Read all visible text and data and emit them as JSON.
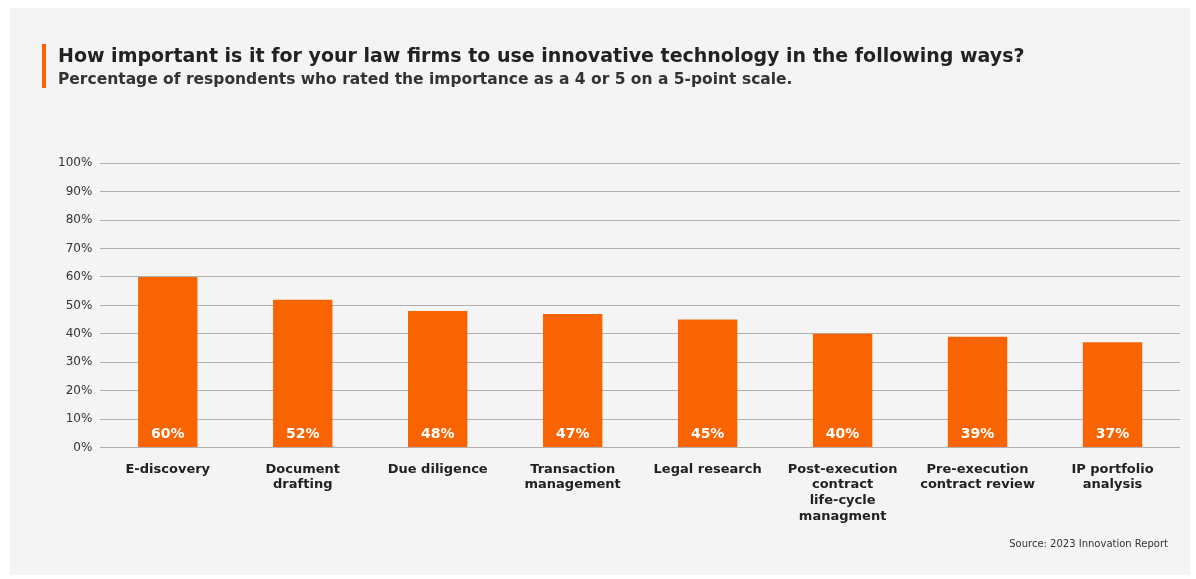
{
  "chart_data": {
    "type": "bar",
    "title": "How important is it for your law firms to use innovative technology in the following ways?",
    "subtitle": "Percentage of respondents who rated the importance as a 4 or 5 on a 5-point scale.",
    "categories": [
      "E-discovery",
      "Document drafting",
      "Due diligence",
      "Transaction management",
      "Legal research",
      "Post-execution contract life-cycle managment",
      "Pre-execution contract review",
      "IP portfolio analysis"
    ],
    "values": [
      60,
      52,
      48,
      47,
      45,
      40,
      39,
      37
    ],
    "value_labels": [
      "60%",
      "52%",
      "48%",
      "47%",
      "45%",
      "40%",
      "39%",
      "37%"
    ],
    "color": "#fa6400",
    "ylim": [
      0,
      100
    ],
    "yticks": [
      {
        "value": 0,
        "label": "0%"
      },
      {
        "value": 10,
        "label": "10%"
      },
      {
        "value": 20,
        "label": "20%"
      },
      {
        "value": 30,
        "label": "30%"
      },
      {
        "value": 40,
        "label": "40%"
      },
      {
        "value": 50,
        "label": "50%"
      },
      {
        "value": 60,
        "label": "60%"
      },
      {
        "value": 70,
        "label": "70%"
      },
      {
        "value": 80,
        "label": "80%"
      },
      {
        "value": 90,
        "label": "90%"
      },
      {
        "value": 100,
        "label": "100%"
      }
    ],
    "grid": "y",
    "legend": false,
    "annotations": [
      "Source: 2023 Innovation Report"
    ]
  }
}
